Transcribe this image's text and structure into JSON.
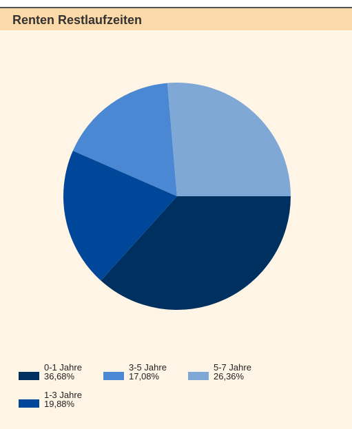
{
  "chart_data": {
    "type": "pie",
    "title": "Renten Restlaufzeiten",
    "categories": [
      "0-1 Jahre",
      "1-3 Jahre",
      "3-5 Jahre",
      "5-7 Jahre"
    ],
    "values": [
      36.68,
      19.88,
      17.08,
      26.36
    ],
    "value_labels": [
      "36,68%",
      "19,88%",
      "17,08%",
      "26,36%"
    ],
    "colors": [
      "#00305f",
      "#00479a",
      "#4a88d4",
      "#7fa8d6"
    ]
  }
}
